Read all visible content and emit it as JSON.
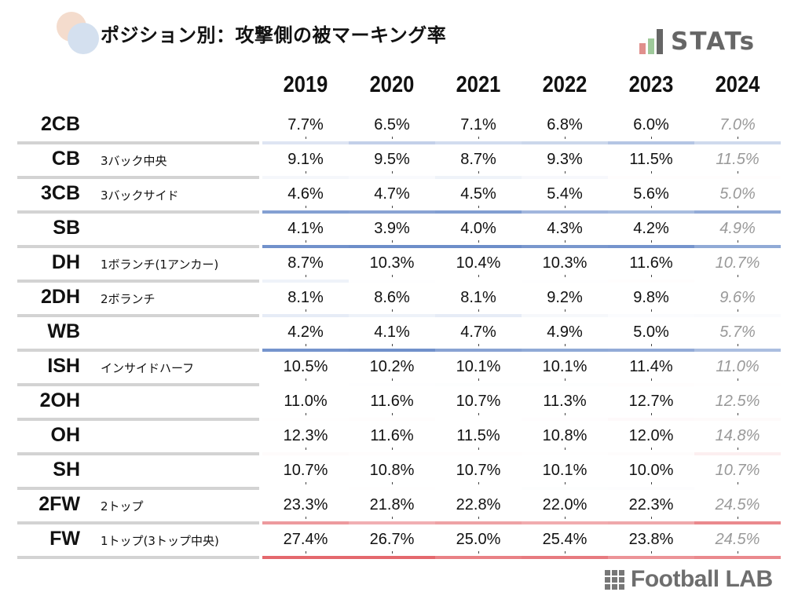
{
  "title": "ポジション別：攻撃側の被マーキング率",
  "logos": {
    "stats": "STATs",
    "footballlab": "Football LAB"
  },
  "colors": {
    "low": "#6d8ec9",
    "high": "#e4686d",
    "neutral": "#ffffff"
  },
  "chart_data": {
    "type": "table",
    "title": "ポジション別：攻撃側の被マーキング率",
    "columns": [
      "2019",
      "2020",
      "2021",
      "2022",
      "2023",
      "2024"
    ],
    "rows": [
      {
        "position": "2CB",
        "description": "",
        "values": [
          "7.7%",
          "6.5%",
          "7.1%",
          "6.8%",
          "6.0%",
          "7.0%"
        ]
      },
      {
        "position": "CB",
        "description": "3バック中央",
        "values": [
          "9.1%",
          "9.5%",
          "8.7%",
          "9.3%",
          "11.5%",
          "11.5%"
        ]
      },
      {
        "position": "3CB",
        "description": "3バックサイド",
        "values": [
          "4.6%",
          "4.7%",
          "4.5%",
          "5.4%",
          "5.6%",
          "5.0%"
        ]
      },
      {
        "position": "SB",
        "description": "",
        "values": [
          "4.1%",
          "3.9%",
          "4.0%",
          "4.3%",
          "4.2%",
          "4.9%"
        ]
      },
      {
        "position": "DH",
        "description": "1ボランチ(1アンカー)",
        "values": [
          "8.7%",
          "10.3%",
          "10.4%",
          "10.3%",
          "11.6%",
          "10.7%"
        ]
      },
      {
        "position": "2DH",
        "description": "2ボランチ",
        "values": [
          "8.1%",
          "8.6%",
          "8.1%",
          "9.2%",
          "9.8%",
          "9.6%"
        ]
      },
      {
        "position": "WB",
        "description": "",
        "values": [
          "4.2%",
          "4.1%",
          "4.7%",
          "4.9%",
          "5.0%",
          "5.7%"
        ]
      },
      {
        "position": "ISH",
        "description": "インサイドハーフ",
        "values": [
          "10.5%",
          "10.2%",
          "10.1%",
          "10.1%",
          "11.4%",
          "11.0%"
        ]
      },
      {
        "position": "2OH",
        "description": "",
        "values": [
          "11.0%",
          "11.6%",
          "10.7%",
          "11.3%",
          "12.7%",
          "12.5%"
        ]
      },
      {
        "position": "OH",
        "description": "",
        "values": [
          "12.3%",
          "11.6%",
          "11.5%",
          "10.8%",
          "12.0%",
          "14.8%"
        ]
      },
      {
        "position": "SH",
        "description": "",
        "values": [
          "10.7%",
          "10.8%",
          "10.7%",
          "10.1%",
          "10.0%",
          "10.7%"
        ]
      },
      {
        "position": "2FW",
        "description": "2トップ",
        "values": [
          "23.3%",
          "21.8%",
          "22.8%",
          "22.0%",
          "22.3%",
          "24.5%"
        ]
      },
      {
        "position": "FW",
        "description": "1トップ(3トップ中央)",
        "values": [
          "27.4%",
          "26.7%",
          "25.0%",
          "25.4%",
          "23.8%",
          "24.5%"
        ]
      }
    ],
    "highlighted_column": "2024"
  }
}
